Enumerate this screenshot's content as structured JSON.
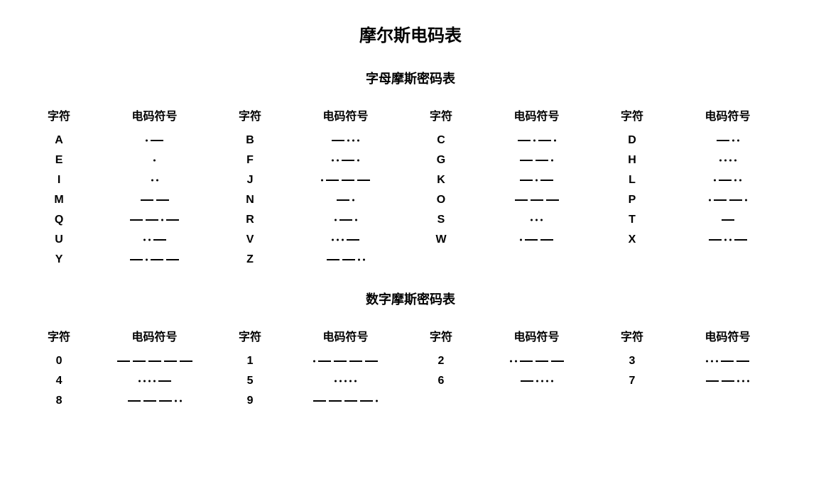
{
  "title": "摩尔斯电码表",
  "letter_section_title": "字母摩斯密码表",
  "number_section_title": "数字摩斯密码表",
  "headers": {
    "char": "字符",
    "code": "电码符号"
  },
  "style": {
    "background_color": "#ffffff",
    "text_color": "#000000",
    "title_fontsize": 24,
    "section_fontsize": 18,
    "cell_fontsize": 16,
    "dot_radius": 1.5,
    "dash_width": 18,
    "dash_height": 2,
    "unit_gap": 4
  },
  "letter_rows": [
    [
      {
        "char": "A",
        "code": ".-"
      },
      {
        "char": "B",
        "code": "-..."
      },
      {
        "char": "C",
        "code": "-.-."
      },
      {
        "char": "D",
        "code": "-.."
      }
    ],
    [
      {
        "char": "E",
        "code": "."
      },
      {
        "char": "F",
        "code": "..-."
      },
      {
        "char": "G",
        "code": "--."
      },
      {
        "char": "H",
        "code": "...."
      }
    ],
    [
      {
        "char": "I",
        "code": ".."
      },
      {
        "char": "J",
        "code": ".---"
      },
      {
        "char": "K",
        "code": "-.-"
      },
      {
        "char": "L",
        "code": ".-.."
      }
    ],
    [
      {
        "char": "M",
        "code": "--"
      },
      {
        "char": "N",
        "code": "-."
      },
      {
        "char": "O",
        "code": "---"
      },
      {
        "char": "P",
        "code": ".--."
      }
    ],
    [
      {
        "char": "Q",
        "code": "--.-"
      },
      {
        "char": "R",
        "code": ".-."
      },
      {
        "char": "S",
        "code": "..."
      },
      {
        "char": "T",
        "code": "-"
      }
    ],
    [
      {
        "char": "U",
        "code": "..-"
      },
      {
        "char": "V",
        "code": "...-"
      },
      {
        "char": "W",
        "code": ".--"
      },
      {
        "char": "X",
        "code": "-..-"
      }
    ],
    [
      {
        "char": "Y",
        "code": "-.--"
      },
      {
        "char": "Z",
        "code": "--.."
      },
      null,
      null
    ]
  ],
  "number_rows": [
    [
      {
        "char": "0",
        "code": "-----"
      },
      {
        "char": "1",
        "code": ".----"
      },
      {
        "char": "2",
        "code": "..---"
      },
      {
        "char": "3",
        "code": "...--"
      }
    ],
    [
      {
        "char": "4",
        "code": "....-"
      },
      {
        "char": "5",
        "code": "....."
      },
      {
        "char": "6",
        "code": "-...."
      },
      {
        "char": "7",
        "code": "--..."
      }
    ],
    [
      {
        "char": "8",
        "code": "---.."
      },
      {
        "char": "9",
        "code": "----."
      },
      null,
      null
    ]
  ]
}
